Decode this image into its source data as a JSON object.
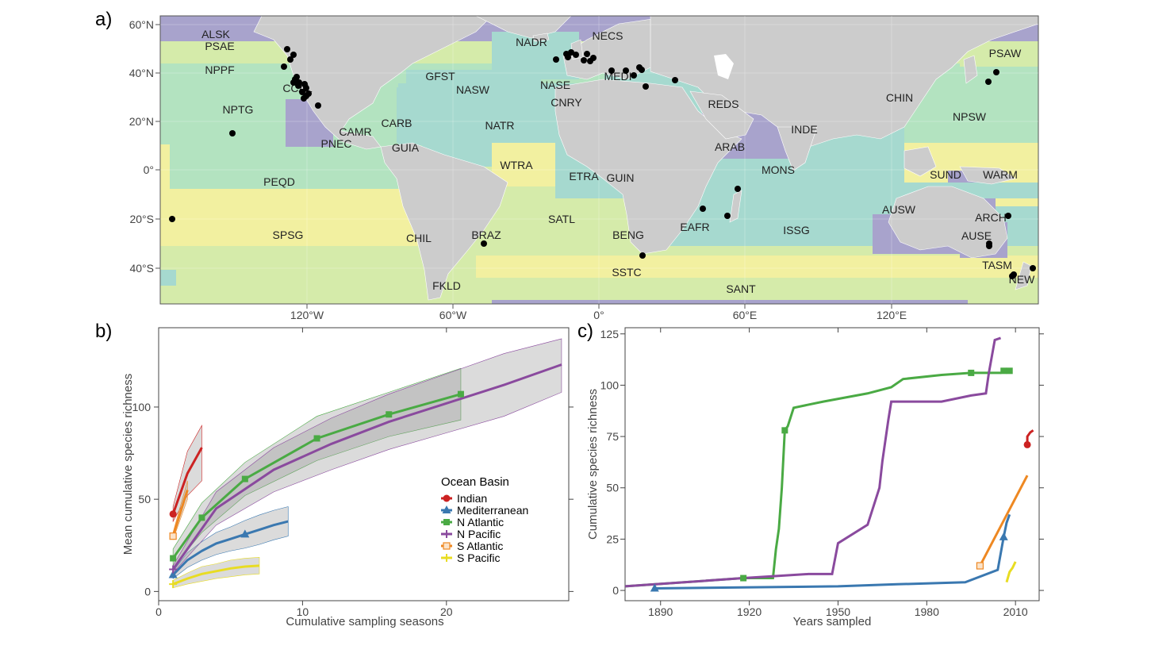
{
  "panel_labels": {
    "a": "a)",
    "b": "b)",
    "c": "c)"
  },
  "map": {
    "lat_ticks": [
      "60°N",
      "40°N",
      "20°N",
      "0°",
      "20°S",
      "40°S"
    ],
    "lon_ticks": [
      "120°W",
      "60°W",
      "0°",
      "60°E",
      "120°E"
    ],
    "regions": [
      "ALSK",
      "PSAE",
      "NPPF",
      "NPTG",
      "CCAL",
      "CAMR",
      "PNEC",
      "CARB",
      "GUIA",
      "PEQD",
      "SPSG",
      "CHIL",
      "FKLD",
      "BRAZ",
      "SATL",
      "WTRA",
      "NATR",
      "GFST",
      "NASW",
      "NADR",
      "NECS",
      "NASE",
      "CNRY",
      "MEDI",
      "ETRA",
      "GUIN",
      "BENG",
      "SSTC",
      "SANT",
      "EAFR",
      "ISSG",
      "MONS",
      "ARAB",
      "REDS",
      "INDE",
      "CHIN",
      "NPSW",
      "PSAW",
      "SUND",
      "WARM",
      "AUSW",
      "ARCH",
      "AUSE",
      "TASM",
      "NEWZ"
    ],
    "colors": {
      "land": "#cccccc",
      "purple": "#a8a3cc",
      "teal": "#a6d9cf",
      "green": "#b3e3c0",
      "lightgreen": "#d5ebaa",
      "yellow": "#f2f0a0"
    }
  },
  "chart_data": [
    {
      "type": "line",
      "panel": "b",
      "xlabel": "Cumulative sampling seasons",
      "ylabel": "Mean cumulative species richness",
      "xlim": [
        0,
        28.5
      ],
      "ylim": [
        -5,
        143
      ],
      "xticks": [
        0,
        10,
        20
      ],
      "yticks": [
        0,
        50,
        100
      ],
      "legend": {
        "title": "Ocean Basin",
        "position": "right",
        "entries": [
          "Indian",
          "Mediterranean",
          "N Atlantic",
          "N Pacific",
          "S Atlantic",
          "S Pacific"
        ]
      },
      "series": [
        {
          "name": "Indian",
          "color": "#cc2222",
          "marker": "circle",
          "x": [
            1,
            2,
            3
          ],
          "y": [
            42,
            64,
            78
          ],
          "ci_low": [
            38,
            52,
            60
          ],
          "ci_high": [
            46,
            76,
            90
          ]
        },
        {
          "name": "Mediterranean",
          "color": "#3a78b0",
          "marker": "triangle",
          "x": [
            1,
            2,
            3,
            4,
            5,
            6,
            7,
            8,
            9
          ],
          "y": [
            9,
            17,
            22,
            26,
            28.5,
            31,
            33.5,
            36,
            38
          ],
          "ci_low": [
            7,
            13,
            17,
            20,
            22,
            23.5,
            25.5,
            28,
            30
          ],
          "ci_high": [
            11,
            21,
            27,
            32,
            35,
            38.5,
            41.5,
            44,
            46
          ]
        },
        {
          "name": "N Atlantic",
          "color": "#4aaa44",
          "marker": "square",
          "x": [
            1,
            3,
            6,
            11,
            16,
            21
          ],
          "y": [
            18,
            40,
            61,
            83,
            96,
            107
          ],
          "ci_low": [
            13,
            32,
            52,
            71,
            84,
            93
          ],
          "ci_high": [
            23,
            48,
            70,
            95,
            108,
            121
          ]
        },
        {
          "name": "N Pacific",
          "color": "#8a4a9e",
          "marker": "plus",
          "x": [
            1,
            4,
            8,
            12,
            16,
            20,
            24,
            28
          ],
          "y": [
            12,
            45,
            66,
            80,
            92,
            102,
            112,
            123
          ],
          "ci_low": [
            10,
            36,
            54,
            66,
            77,
            86,
            95,
            108
          ],
          "ci_high": [
            14,
            54,
            78,
            94,
            107,
            118,
            129,
            137
          ]
        },
        {
          "name": "S Atlantic",
          "color": "#ee8822",
          "marker": "square-open",
          "x": [
            1,
            2
          ],
          "y": [
            30,
            55
          ],
          "ci_low": [
            28,
            50
          ],
          "ci_high": [
            32,
            60
          ]
        },
        {
          "name": "S Pacific",
          "color": "#e8dc22",
          "marker": "plus",
          "x": [
            1,
            2,
            3,
            4,
            5,
            6,
            7
          ],
          "y": [
            4,
            7,
            9.5,
            11,
            12.5,
            13.5,
            14
          ],
          "ci_low": [
            2,
            4,
            5.5,
            7,
            8,
            9,
            9.5
          ],
          "ci_high": [
            6,
            10,
            13.5,
            15,
            17,
            18,
            18.5
          ]
        }
      ]
    },
    {
      "type": "line",
      "panel": "c",
      "xlabel": "Years sampled",
      "ylabel": "Cumulative species richness",
      "xlim": [
        1878,
        2018
      ],
      "ylim": [
        -5,
        128
      ],
      "xticks": [
        1890,
        1920,
        1950,
        1980,
        2010
      ],
      "yticks": [
        0,
        25,
        50,
        75,
        100,
        125
      ],
      "series": [
        {
          "name": "Indian",
          "color": "#cc2222",
          "marker": "circle",
          "x": [
            2014,
            2014,
            2015,
            2016
          ],
          "y": [
            71,
            75,
            77,
            78
          ]
        },
        {
          "name": "Mediterranean",
          "color": "#3a78b0",
          "marker": "triangle",
          "x": [
            1888,
            1950,
            1970,
            1993,
            2004,
            2006,
            2007,
            2008
          ],
          "y": [
            1,
            2,
            3,
            4,
            10,
            26,
            33,
            37
          ]
        },
        {
          "name": "N Atlantic",
          "color": "#4aaa44",
          "marker": "square",
          "x": [
            1878,
            1918,
            1928,
            1929,
            1930,
            1931,
            1932,
            1933,
            1935,
            1945,
            1960,
            1968,
            1972,
            1985,
            1995,
            2005,
            2007
          ],
          "y": [
            2,
            6,
            6,
            20,
            30,
            50,
            78,
            80,
            89,
            92,
            96,
            99,
            103,
            105,
            106,
            106,
            107
          ]
        },
        {
          "name": "N Pacific",
          "color": "#8a4a9e",
          "marker": "plus",
          "x": [
            1878,
            1918,
            1940,
            1948,
            1950,
            1960,
            1964,
            1965,
            1967,
            1968,
            1970,
            1975,
            1985,
            1995,
            2000,
            2001,
            2003,
            2005
          ],
          "y": [
            2,
            6,
            8,
            8,
            23,
            32,
            50,
            63,
            83,
            92,
            92,
            92,
            92,
            95,
            96,
            106,
            122,
            123
          ]
        },
        {
          "name": "S Atlantic",
          "color": "#ee8822",
          "marker": "square-open",
          "x": [
            1998,
            2014
          ],
          "y": [
            12,
            56
          ]
        },
        {
          "name": "S Pacific",
          "color": "#e8dc22",
          "marker": "plus",
          "x": [
            2007,
            2008,
            2009,
            2010
          ],
          "y": [
            4,
            9,
            11,
            14
          ]
        }
      ]
    }
  ]
}
